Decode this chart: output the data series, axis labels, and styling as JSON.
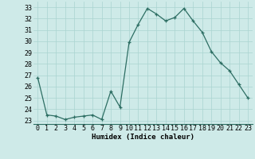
{
  "x": [
    0,
    1,
    2,
    3,
    4,
    5,
    6,
    7,
    8,
    9,
    10,
    11,
    12,
    13,
    14,
    15,
    16,
    17,
    18,
    19,
    20,
    21,
    22,
    23
  ],
  "y": [
    26.8,
    23.5,
    23.4,
    23.1,
    23.3,
    23.4,
    23.5,
    23.1,
    25.6,
    24.2,
    29.9,
    31.5,
    32.9,
    32.4,
    31.8,
    32.1,
    32.9,
    31.8,
    30.8,
    29.1,
    28.1,
    27.4,
    26.2,
    25.0
  ],
  "line_color": "#2d6e63",
  "marker": "+",
  "marker_size": 3.5,
  "bg_color": "#ceeae8",
  "grid_color": "#aad4d0",
  "xlabel": "Humidex (Indice chaleur)",
  "ylim": [
    22.7,
    33.5
  ],
  "xlim": [
    -0.5,
    23.5
  ],
  "yticks": [
    23,
    24,
    25,
    26,
    27,
    28,
    29,
    30,
    31,
    32,
    33
  ],
  "xticks": [
    0,
    1,
    2,
    3,
    4,
    5,
    6,
    7,
    8,
    9,
    10,
    11,
    12,
    13,
    14,
    15,
    16,
    17,
    18,
    19,
    20,
    21,
    22,
    23
  ],
  "label_fontsize": 6.5,
  "tick_fontsize": 6.0,
  "linewidth": 0.9,
  "markeredgewidth": 0.9
}
